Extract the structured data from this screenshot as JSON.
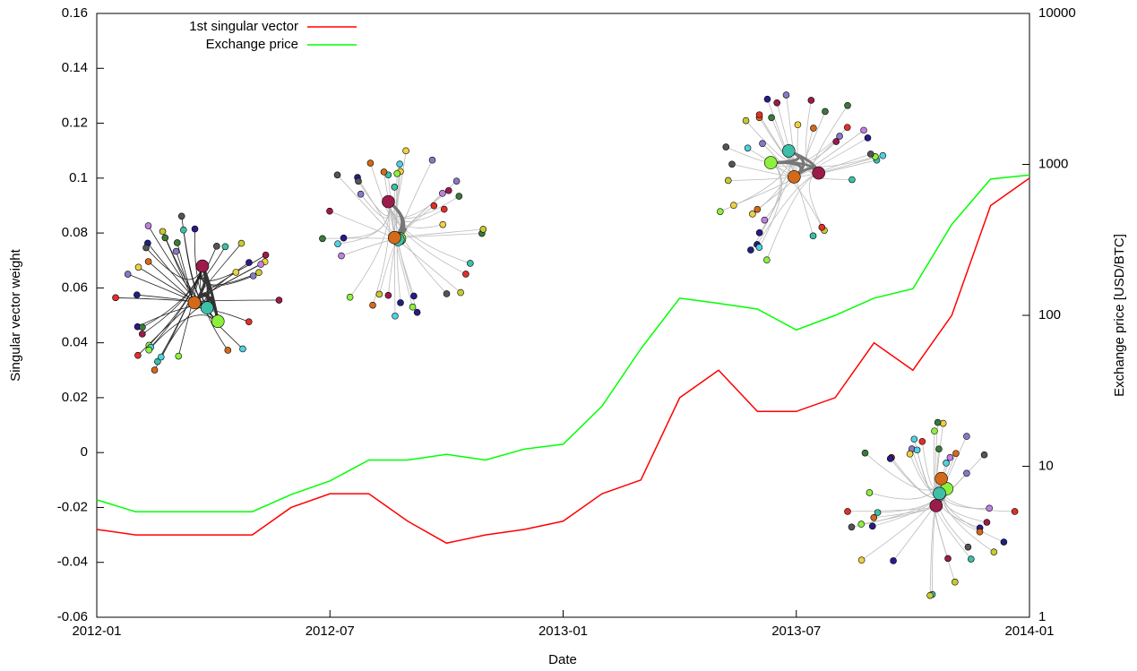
{
  "chart_data": {
    "type": "line",
    "x_label": "Date",
    "y_label": "Singular vector weight",
    "y2_label": "Exchange price [USD/BTC]",
    "x": [
      "2012-01",
      "2012-02",
      "2012-03",
      "2012-04",
      "2012-05",
      "2012-06",
      "2012-07",
      "2012-08",
      "2012-09",
      "2012-10",
      "2012-11",
      "2012-12",
      "2013-01",
      "2013-02",
      "2013-03",
      "2013-04",
      "2013-05",
      "2013-06",
      "2013-07",
      "2013-08",
      "2013-09",
      "2013-10",
      "2013-11",
      "2013-12",
      "2014-01"
    ],
    "xlim": [
      "2012-01",
      "2014-01"
    ],
    "xticks": [
      "2012-01",
      "2012-07",
      "2013-01",
      "2013-07",
      "2014-01"
    ],
    "ylim": [
      -0.06,
      0.16
    ],
    "yticks": [
      -0.06,
      -0.04,
      -0.02,
      0,
      0.02,
      0.04,
      0.06,
      0.08,
      0.1,
      0.12,
      0.14,
      0.16
    ],
    "y2lim": [
      1,
      10000
    ],
    "y2ticks": [
      1,
      10,
      100,
      1000,
      10000
    ],
    "y2_log_scale": true,
    "legend_position": "upper left",
    "series": [
      {
        "name": "1st singular vector",
        "color": "#ff0000",
        "values": [
          -0.028,
          -0.03,
          -0.03,
          -0.03,
          -0.03,
          -0.02,
          -0.015,
          -0.015,
          -0.025,
          -0.033,
          -0.03,
          -0.028,
          -0.025,
          -0.015,
          -0.01,
          0.02,
          0.03,
          0.015,
          0.015,
          0.02,
          0.04,
          0.03,
          0.05,
          0.09,
          0.1
        ]
      },
      {
        "name": "Exchange price",
        "color": "#00ff00",
        "axis": "y2",
        "values": [
          6,
          5,
          5,
          5,
          5,
          6.5,
          8,
          11,
          11,
          12,
          11,
          13,
          14,
          25,
          60,
          130,
          120,
          110,
          80,
          100,
          130,
          150,
          400,
          800,
          850
        ]
      }
    ]
  }
}
